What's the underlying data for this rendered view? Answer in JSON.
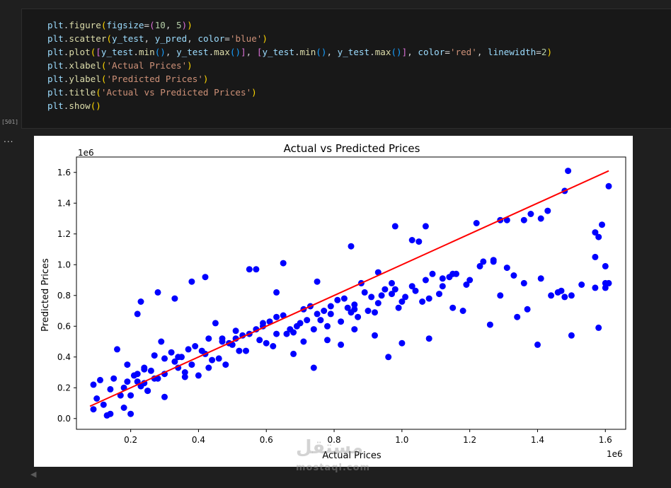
{
  "notebook": {
    "execution_count": "[501]",
    "output_indicator": "...",
    "code_lines": [
      [
        [
          "plt",
          "var"
        ],
        [
          ".",
          "op"
        ],
        [
          "figure",
          "fn"
        ],
        [
          "(",
          "p1"
        ],
        [
          "figsize",
          "var"
        ],
        [
          "=",
          "op"
        ],
        [
          "(",
          "p2"
        ],
        [
          "10",
          "num"
        ],
        [
          ", ",
          "op"
        ],
        [
          "5",
          "num"
        ],
        [
          ")",
          "p2"
        ],
        [
          ")",
          "p1"
        ]
      ],
      [
        [
          "plt",
          "var"
        ],
        [
          ".",
          "op"
        ],
        [
          "scatter",
          "fn"
        ],
        [
          "(",
          "p1"
        ],
        [
          "y_test",
          "var"
        ],
        [
          ", ",
          "op"
        ],
        [
          "y_pred",
          "var"
        ],
        [
          ", ",
          "op"
        ],
        [
          "color",
          "var"
        ],
        [
          "=",
          "op"
        ],
        [
          "'blue'",
          "str"
        ],
        [
          ")",
          "p1"
        ]
      ],
      [
        [
          "plt",
          "var"
        ],
        [
          ".",
          "op"
        ],
        [
          "plot",
          "fn"
        ],
        [
          "(",
          "p1"
        ],
        [
          "[",
          "p2"
        ],
        [
          "y_test",
          "var"
        ],
        [
          ".",
          "op"
        ],
        [
          "min",
          "fn"
        ],
        [
          "()",
          "p3"
        ],
        [
          ", ",
          "op"
        ],
        [
          "y_test",
          "var"
        ],
        [
          ".",
          "op"
        ],
        [
          "max",
          "fn"
        ],
        [
          "()",
          "p3"
        ],
        [
          "]",
          "p2"
        ],
        [
          ", ",
          "op"
        ],
        [
          "[",
          "p2"
        ],
        [
          "y_test",
          "var"
        ],
        [
          ".",
          "op"
        ],
        [
          "min",
          "fn"
        ],
        [
          "()",
          "p3"
        ],
        [
          ", ",
          "op"
        ],
        [
          "y_test",
          "var"
        ],
        [
          ".",
          "op"
        ],
        [
          "max",
          "fn"
        ],
        [
          "()",
          "p3"
        ],
        [
          "]",
          "p2"
        ],
        [
          ", ",
          "op"
        ],
        [
          "color",
          "var"
        ],
        [
          "=",
          "op"
        ],
        [
          "'red'",
          "str"
        ],
        [
          ", ",
          "op"
        ],
        [
          "linewidth",
          "var"
        ],
        [
          "=",
          "op"
        ],
        [
          "2",
          "num"
        ],
        [
          ")",
          "p1"
        ]
      ],
      [
        [
          "plt",
          "var"
        ],
        [
          ".",
          "op"
        ],
        [
          "xlabel",
          "fn"
        ],
        [
          "(",
          "p1"
        ],
        [
          "'Actual Prices'",
          "str"
        ],
        [
          ")",
          "p1"
        ]
      ],
      [
        [
          "plt",
          "var"
        ],
        [
          ".",
          "op"
        ],
        [
          "ylabel",
          "fn"
        ],
        [
          "(",
          "p1"
        ],
        [
          "'Predicted Prices'",
          "str"
        ],
        [
          ")",
          "p1"
        ]
      ],
      [
        [
          "plt",
          "var"
        ],
        [
          ".",
          "op"
        ],
        [
          "title",
          "fn"
        ],
        [
          "(",
          "p1"
        ],
        [
          "'Actual vs Predicted Prices'",
          "str"
        ],
        [
          ")",
          "p1"
        ]
      ],
      [
        [
          "plt",
          "var"
        ],
        [
          ".",
          "op"
        ],
        [
          "show",
          "fn"
        ],
        [
          "()",
          "p1"
        ]
      ]
    ]
  },
  "watermark": {
    "arabic": "مستقل",
    "latin": "mostaql.com"
  },
  "chart_data": {
    "type": "scatter",
    "title": "Actual vs Predicted Prices",
    "xlabel": "Actual Prices",
    "ylabel": "Predicted Prices",
    "x_offset_label": "1e6",
    "y_offset_label": "1e6",
    "xlim": [
      0.04,
      1.66
    ],
    "ylim": [
      -0.07,
      1.7
    ],
    "xticks": [
      0.2,
      0.4,
      0.6,
      0.8,
      1.0,
      1.2,
      1.4,
      1.6
    ],
    "xtick_labels": [
      "0.2",
      "0.4",
      "0.6",
      "0.8",
      "1.0",
      "1.2",
      "1.4",
      "1.6"
    ],
    "yticks": [
      0.0,
      0.2,
      0.4,
      0.6,
      0.8,
      1.0,
      1.2,
      1.4,
      1.6
    ],
    "ytick_labels": [
      "0.0",
      "0.2",
      "0.4",
      "0.6",
      "0.8",
      "1.0",
      "1.2",
      "1.4",
      "1.6"
    ],
    "grid": false,
    "point_color": "#0000ff",
    "line_color": "#ff0000",
    "line": {
      "x": [
        0.08,
        1.61
      ],
      "y": [
        0.08,
        1.61
      ],
      "linewidth": 2
    },
    "series": [
      {
        "x": [
          1.49,
          1.48,
          1.61,
          1.43,
          1.38,
          1.41,
          1.36,
          1.59,
          1.29,
          1.31,
          1.57,
          1.58,
          1.6,
          1.57,
          1.48,
          1.5,
          1.58,
          1.6,
          1.44,
          1.47,
          1.57,
          1.61,
          1.6,
          1.36,
          1.46,
          1.5,
          1.53,
          1.4,
          1.37,
          1.26,
          1.33,
          1.07,
          0.98,
          1.24,
          1.15,
          1.12,
          1.0,
          1.08,
          0.86,
          0.92,
          0.78,
          0.71,
          0.63,
          0.51,
          0.48,
          0.43,
          0.4,
          0.3,
          0.2,
          0.25,
          0.13,
          0.09,
          0.1,
          0.12,
          0.14,
          0.18,
          0.22,
          0.23,
          0.42,
          0.57,
          0.65,
          0.75,
          0.85,
          1.05,
          1.22,
          1.31,
          1.41,
          1.29,
          1.34,
          1.18,
          1.14,
          1.03,
          0.93,
          0.88,
          0.63,
          0.55,
          0.38,
          0.28,
          0.33,
          0.16,
          0.11,
          0.09,
          0.2,
          0.25,
          0.36,
          0.68,
          0.74,
          0.82,
          0.96,
          1.06,
          1.27,
          1.09,
          0.97,
          0.86,
          0.79,
          0.72,
          0.59,
          0.47,
          0.34,
          0.24,
          0.19,
          0.14,
          0.15,
          0.19,
          0.22,
          0.27,
          0.24,
          0.29,
          0.33,
          0.37,
          0.41,
          0.45,
          0.49,
          0.53,
          0.57,
          0.61,
          0.65,
          0.69,
          0.73,
          0.77,
          0.81,
          0.85,
          0.89,
          0.93,
          0.97,
          1.01,
          0.98,
          0.94,
          0.9,
          0.86,
          0.82,
          0.78,
          0.74,
          0.7,
          0.66,
          0.62,
          0.58,
          0.54,
          0.5,
          0.46,
          0.42,
          0.38,
          0.34,
          0.3,
          0.26,
          0.22,
          0.18,
          0.21,
          0.24,
          0.27,
          0.3,
          0.32,
          0.35,
          0.39,
          0.43,
          0.47,
          0.51,
          0.55,
          0.59,
          0.63,
          0.67,
          0.71,
          0.75,
          0.79,
          0.83,
          0.87,
          0.91,
          0.95,
          0.99,
          1.03,
          1.07,
          1.11,
          1.15,
          1.19,
          1.23,
          1.27,
          1.2,
          1.16,
          1.12,
          1.08,
          1.04,
          1.0,
          0.92,
          0.84,
          0.76,
          0.68,
          0.6,
          0.52,
          0.44,
          0.36,
          0.28,
          0.23,
          0.17
        ],
        "y": [
          1.61,
          1.48,
          1.51,
          1.35,
          1.33,
          1.3,
          1.29,
          1.26,
          1.29,
          1.29,
          1.21,
          1.18,
          0.88,
          0.85,
          0.79,
          0.54,
          0.59,
          0.85,
          0.8,
          0.83,
          1.05,
          0.88,
          0.99,
          0.88,
          0.82,
          0.8,
          0.87,
          0.48,
          0.71,
          0.61,
          0.93,
          1.25,
          1.25,
          1.02,
          0.72,
          0.91,
          0.49,
          0.52,
          0.58,
          0.54,
          0.51,
          0.5,
          0.55,
          0.52,
          0.35,
          0.33,
          0.28,
          0.14,
          0.03,
          0.18,
          0.02,
          0.06,
          0.13,
          0.09,
          0.03,
          0.07,
          0.68,
          0.76,
          0.92,
          0.97,
          1.01,
          0.89,
          1.12,
          1.15,
          1.27,
          0.98,
          0.91,
          0.8,
          0.66,
          0.7,
          0.92,
          1.16,
          0.95,
          0.88,
          0.82,
          0.97,
          0.89,
          0.82,
          0.78,
          0.45,
          0.25,
          0.22,
          0.15,
          0.18,
          0.27,
          0.42,
          0.33,
          0.48,
          0.4,
          0.76,
          1.02,
          0.94,
          0.81,
          0.71,
          0.68,
          0.64,
          0.6,
          0.52,
          0.4,
          0.32,
          0.24,
          0.19,
          0.26,
          0.35,
          0.29,
          0.41,
          0.23,
          0.5,
          0.37,
          0.45,
          0.44,
          0.62,
          0.49,
          0.54,
          0.58,
          0.63,
          0.67,
          0.6,
          0.73,
          0.7,
          0.77,
          0.69,
          0.82,
          0.75,
          0.88,
          0.79,
          0.84,
          0.8,
          0.7,
          0.74,
          0.63,
          0.6,
          0.58,
          0.62,
          0.55,
          0.47,
          0.51,
          0.44,
          0.48,
          0.39,
          0.42,
          0.35,
          0.33,
          0.29,
          0.31,
          0.24,
          0.2,
          0.28,
          0.33,
          0.26,
          0.39,
          0.43,
          0.4,
          0.47,
          0.52,
          0.5,
          0.57,
          0.55,
          0.62,
          0.66,
          0.58,
          0.71,
          0.68,
          0.73,
          0.78,
          0.66,
          0.79,
          0.84,
          0.72,
          0.86,
          0.9,
          0.81,
          0.94,
          0.87,
          0.99,
          1.03,
          0.9,
          0.94,
          0.86,
          0.78,
          0.83,
          0.76,
          0.69,
          0.72,
          0.64,
          0.56,
          0.49,
          0.44,
          0.38,
          0.3,
          0.26,
          0.21,
          0.15
        ]
      }
    ]
  }
}
